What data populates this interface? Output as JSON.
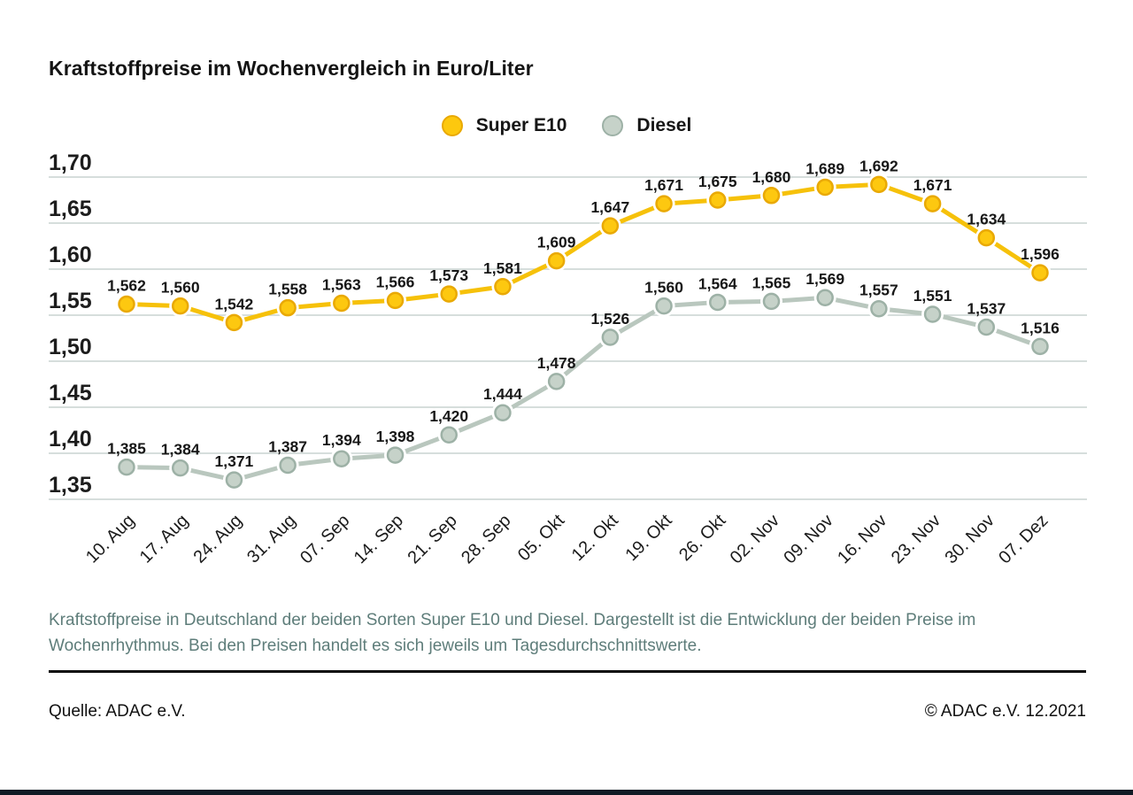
{
  "title": "Kraftstoffpreise im Wochenvergleich in Euro/Liter",
  "chart_data": {
    "type": "line",
    "title": "Kraftstoffpreise im Wochenvergleich in Euro/Liter",
    "categories": [
      "10. Aug",
      "17. Aug",
      "24. Aug",
      "31. Aug",
      "07. Sep",
      "14. Sep",
      "21. Sep",
      "28. Sep",
      "05. Okt",
      "12. Okt",
      "19. Okt",
      "26. Okt",
      "02. Nov",
      "09. Nov",
      "16. Nov",
      "23. Nov",
      "30. Nov",
      "07. Dez"
    ],
    "series": [
      {
        "name": "Super E10",
        "color": "#f6c10a",
        "marker_fill": "#fdc810",
        "marker_ring": "#e9a904",
        "values": [
          1.562,
          1.56,
          1.542,
          1.558,
          1.563,
          1.566,
          1.573,
          1.581,
          1.609,
          1.647,
          1.671,
          1.675,
          1.68,
          1.689,
          1.692,
          1.671,
          1.634,
          1.596
        ],
        "labels": [
          "1,562",
          "1,560",
          "1,542",
          "1,558",
          "1,563",
          "1,566",
          "1,573",
          "1,581",
          "1,609",
          "1,647",
          "1,671",
          "1,675",
          "1,680",
          "1,689",
          "1,692",
          "1,671",
          "1,634",
          "1,596"
        ]
      },
      {
        "name": "Diesel",
        "color": "#b9c7be",
        "marker_fill": "#c6d2c9",
        "marker_ring": "#9db1a6",
        "values": [
          1.385,
          1.384,
          1.371,
          1.387,
          1.394,
          1.398,
          1.42,
          1.444,
          1.478,
          1.526,
          1.56,
          1.564,
          1.565,
          1.569,
          1.557,
          1.551,
          1.537,
          1.516
        ],
        "labels": [
          "1,385",
          "1,384",
          "1,371",
          "1,387",
          "1,394",
          "1,398",
          "1,420",
          "1,444",
          "1,478",
          "1,526",
          "1,560",
          "1,564",
          "1,565",
          "1,569",
          "1,557",
          "1,551",
          "1,537",
          "1,516"
        ]
      }
    ],
    "ylim": [
      1.35,
      1.7
    ],
    "yticks": [
      1.35,
      1.4,
      1.45,
      1.5,
      1.55,
      1.6,
      1.65,
      1.7
    ],
    "ytick_labels": [
      "1,35",
      "1,40",
      "1,45",
      "1,50",
      "1,55",
      "1,60",
      "1,65",
      "1,70"
    ],
    "grid": true,
    "grid_color": "#c9d3d0",
    "label_color": "#171717",
    "legend_position": "top-center",
    "xlabel": "",
    "ylabel": "Euro/Liter"
  },
  "caption": "Kraftstoffpreise in Deutschland der beiden Sorten Super E10 und Diesel. Dargestellt ist die Entwicklung der beiden Preise im Wochenrhythmus. Bei den Preisen handelt es sich jeweils um Tagesdurchschnittswerte.",
  "footer": {
    "source": "Quelle: ADAC e.V.",
    "copyright": "© ADAC e.V. 12.2021"
  },
  "colors": {
    "caption_text": "#5e7d7a",
    "divider": "#0d0d0d",
    "bottom_bar": "#101a24"
  }
}
